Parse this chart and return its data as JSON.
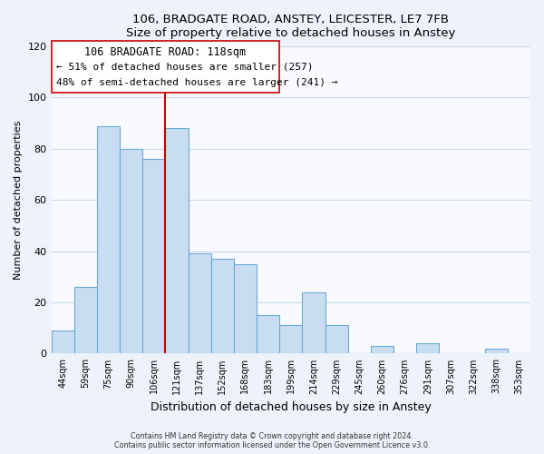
{
  "title": "106, BRADGATE ROAD, ANSTEY, LEICESTER, LE7 7FB",
  "subtitle": "Size of property relative to detached houses in Anstey",
  "xlabel": "Distribution of detached houses by size in Anstey",
  "ylabel": "Number of detached properties",
  "bar_labels": [
    "44sqm",
    "59sqm",
    "75sqm",
    "90sqm",
    "106sqm",
    "121sqm",
    "137sqm",
    "152sqm",
    "168sqm",
    "183sqm",
    "199sqm",
    "214sqm",
    "229sqm",
    "245sqm",
    "260sqm",
    "276sqm",
    "291sqm",
    "307sqm",
    "322sqm",
    "338sqm",
    "353sqm"
  ],
  "bar_values": [
    9,
    26,
    89,
    80,
    76,
    88,
    39,
    37,
    35,
    15,
    11,
    24,
    11,
    0,
    3,
    0,
    4,
    0,
    0,
    2,
    0
  ],
  "bar_color": "#c9ddf2",
  "bar_edge_color": "#6aaad4",
  "ylim": [
    0,
    120
  ],
  "yticks": [
    0,
    20,
    40,
    60,
    80,
    100,
    120
  ],
  "property_label": "106 BRADGATE ROAD: 118sqm",
  "annotation_line1": "← 51% of detached houses are smaller (257)",
  "annotation_line2": "48% of semi-detached houses are larger (241) →",
  "line_color": "#cc0000",
  "box_edge_color": "#cc0000",
  "footer1": "Contains HM Land Registry data © Crown copyright and database right 2024.",
  "footer2": "Contains public sector information licensed under the Open Government Licence v3.0.",
  "background_color": "#eef2fa",
  "plot_bg_color": "#f8faff",
  "grid_color": "#c8d8ea"
}
